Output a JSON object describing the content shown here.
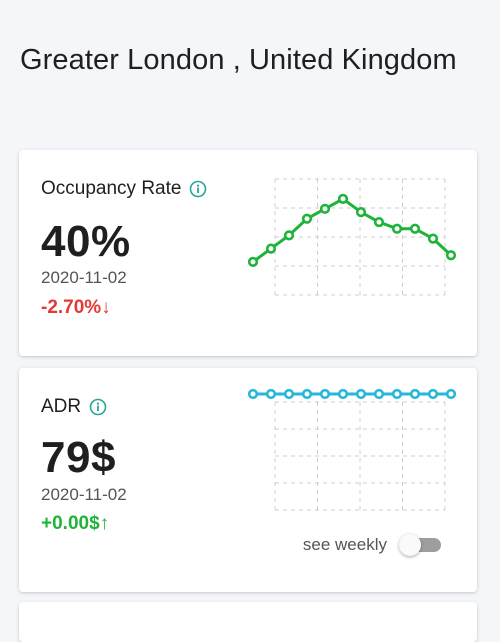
{
  "page": {
    "title": "Greater London , United Kingdom"
  },
  "cards": [
    {
      "label": "Occupancy Rate",
      "info_icon": "info-circle-icon",
      "value": "40%",
      "date": "2020-11-02",
      "change": "-2.70%↓",
      "change_color": "#e53935",
      "sparkline_color": "#1fb33a",
      "sparkline_values": [
        30,
        34,
        38,
        43,
        46,
        49,
        45,
        42,
        40,
        40,
        37,
        32
      ]
    },
    {
      "label": "ADR",
      "info_icon": "info-circle-icon",
      "value": "79$",
      "date": "2020-11-02",
      "change": "+0.00$↑",
      "change_color": "#1fb33a",
      "sparkline_color": "#27b7d8",
      "sparkline_values": [
        79,
        79,
        79,
        79,
        79,
        79,
        79,
        79,
        79,
        79,
        79,
        79
      ],
      "toggle": {
        "label": "see weekly",
        "checked": false
      }
    }
  ],
  "colors": {
    "background": "#f4f6f9",
    "card": "#ffffff",
    "info_icon": "#26a69a"
  }
}
